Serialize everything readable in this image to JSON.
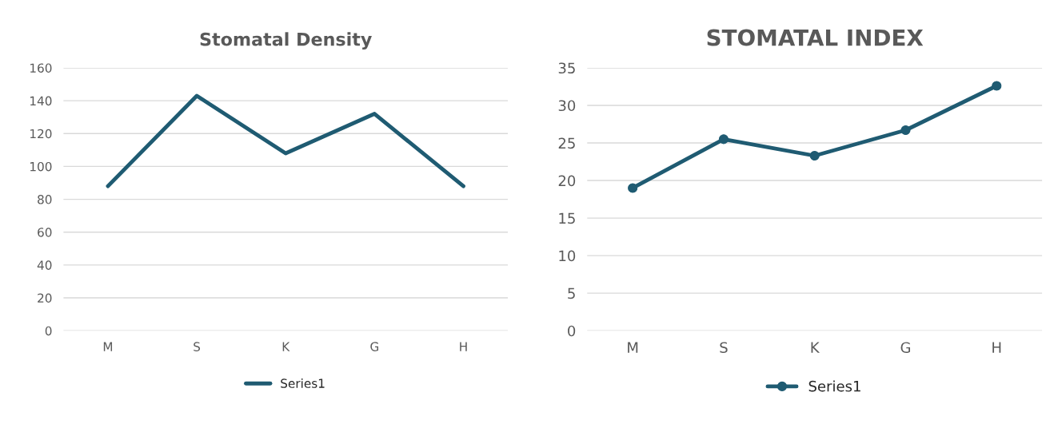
{
  "chart_data": [
    {
      "type": "line",
      "title": "Stomatal Density",
      "categories": [
        "M",
        "S",
        "K",
        "G",
        "H"
      ],
      "series": [
        {
          "name": "Series1",
          "color": "#1f5b72",
          "values": [
            88,
            143,
            108,
            132,
            88
          ]
        }
      ],
      "ylim": [
        0,
        160
      ],
      "yticks": [
        0,
        20,
        40,
        60,
        80,
        100,
        120,
        140,
        160
      ],
      "grid": "y",
      "legend": "bottom",
      "marker": "none"
    },
    {
      "type": "line",
      "title": "STOMATAL INDEX",
      "categories": [
        "M",
        "S",
        "K",
        "G",
        "H"
      ],
      "series": [
        {
          "name": "Series1",
          "color": "#1f5b72",
          "values": [
            19.0,
            25.5,
            23.3,
            26.7,
            32.6
          ]
        }
      ],
      "ylim": [
        0,
        35
      ],
      "yticks": [
        0,
        5,
        10,
        15,
        20,
        25,
        30,
        35
      ],
      "grid": "y",
      "legend": "bottom",
      "marker": "circle"
    }
  ]
}
